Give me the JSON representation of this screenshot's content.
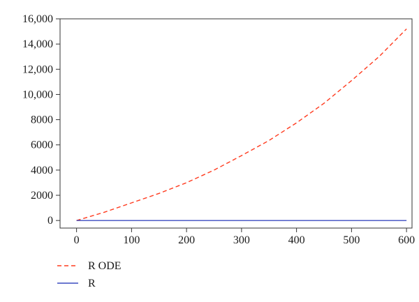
{
  "chart_data": {
    "type": "line",
    "title": "",
    "xlabel": "",
    "ylabel": "",
    "xlim": [
      -30,
      610
    ],
    "ylim": [
      -600,
      16000
    ],
    "x_ticks": [
      0,
      100,
      200,
      300,
      400,
      500,
      600
    ],
    "x_tick_labels": [
      "0",
      "100",
      "200",
      "300",
      "400",
      "500",
      "600"
    ],
    "y_ticks": [
      0,
      2000,
      4000,
      6000,
      8000,
      10000,
      12000,
      14000,
      16000
    ],
    "y_tick_labels": [
      "0",
      "2000",
      "4000",
      "6000",
      "8000",
      "10,000",
      "12,000",
      "14,000",
      "16,000"
    ],
    "grid": false,
    "legend_position": "bottom-left",
    "series": [
      {
        "name": "R ODE",
        "color": "#ff3b1f",
        "style": "dashed",
        "x": [
          0,
          50,
          100,
          150,
          200,
          250,
          300,
          350,
          400,
          450,
          500,
          550,
          600
        ],
        "y": [
          0,
          650,
          1400,
          2150,
          3000,
          4000,
          5150,
          6350,
          7750,
          9300,
          11100,
          13000,
          15200
        ]
      },
      {
        "name": "R",
        "color": "#3b4cc0",
        "style": "solid",
        "x": [
          0,
          600
        ],
        "y": [
          0,
          0
        ]
      }
    ]
  }
}
